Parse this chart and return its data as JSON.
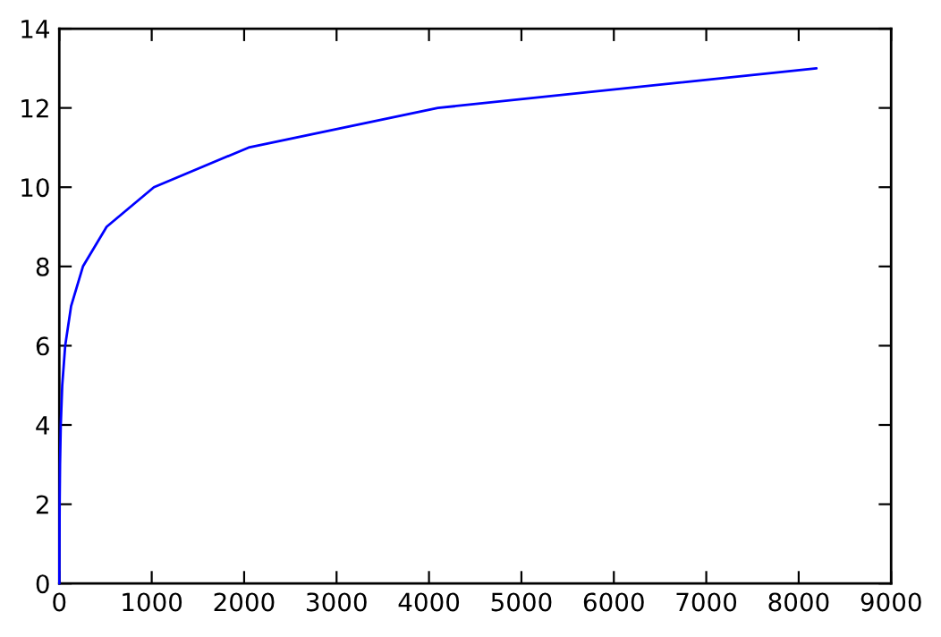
{
  "chart_data": {
    "type": "line",
    "x": [
      1,
      2,
      4,
      8,
      16,
      32,
      64,
      128,
      256,
      512,
      1024,
      2048,
      4096,
      8192
    ],
    "series": [
      {
        "color": "#0000ff",
        "values": [
          0,
          1,
          2,
          3,
          4,
          5,
          6,
          7,
          8,
          9,
          10,
          11,
          12,
          13
        ]
      }
    ],
    "xlim": [
      0,
      9000
    ],
    "xticks": [
      0,
      1000,
      2000,
      3000,
      4000,
      5000,
      6000,
      7000,
      8000,
      9000
    ],
    "ylim": [
      0,
      14
    ],
    "yticks": [
      0,
      2,
      4,
      6,
      8,
      10,
      12,
      14
    ],
    "grid": false,
    "legend": false,
    "marker": "none",
    "line_style": "solid"
  }
}
